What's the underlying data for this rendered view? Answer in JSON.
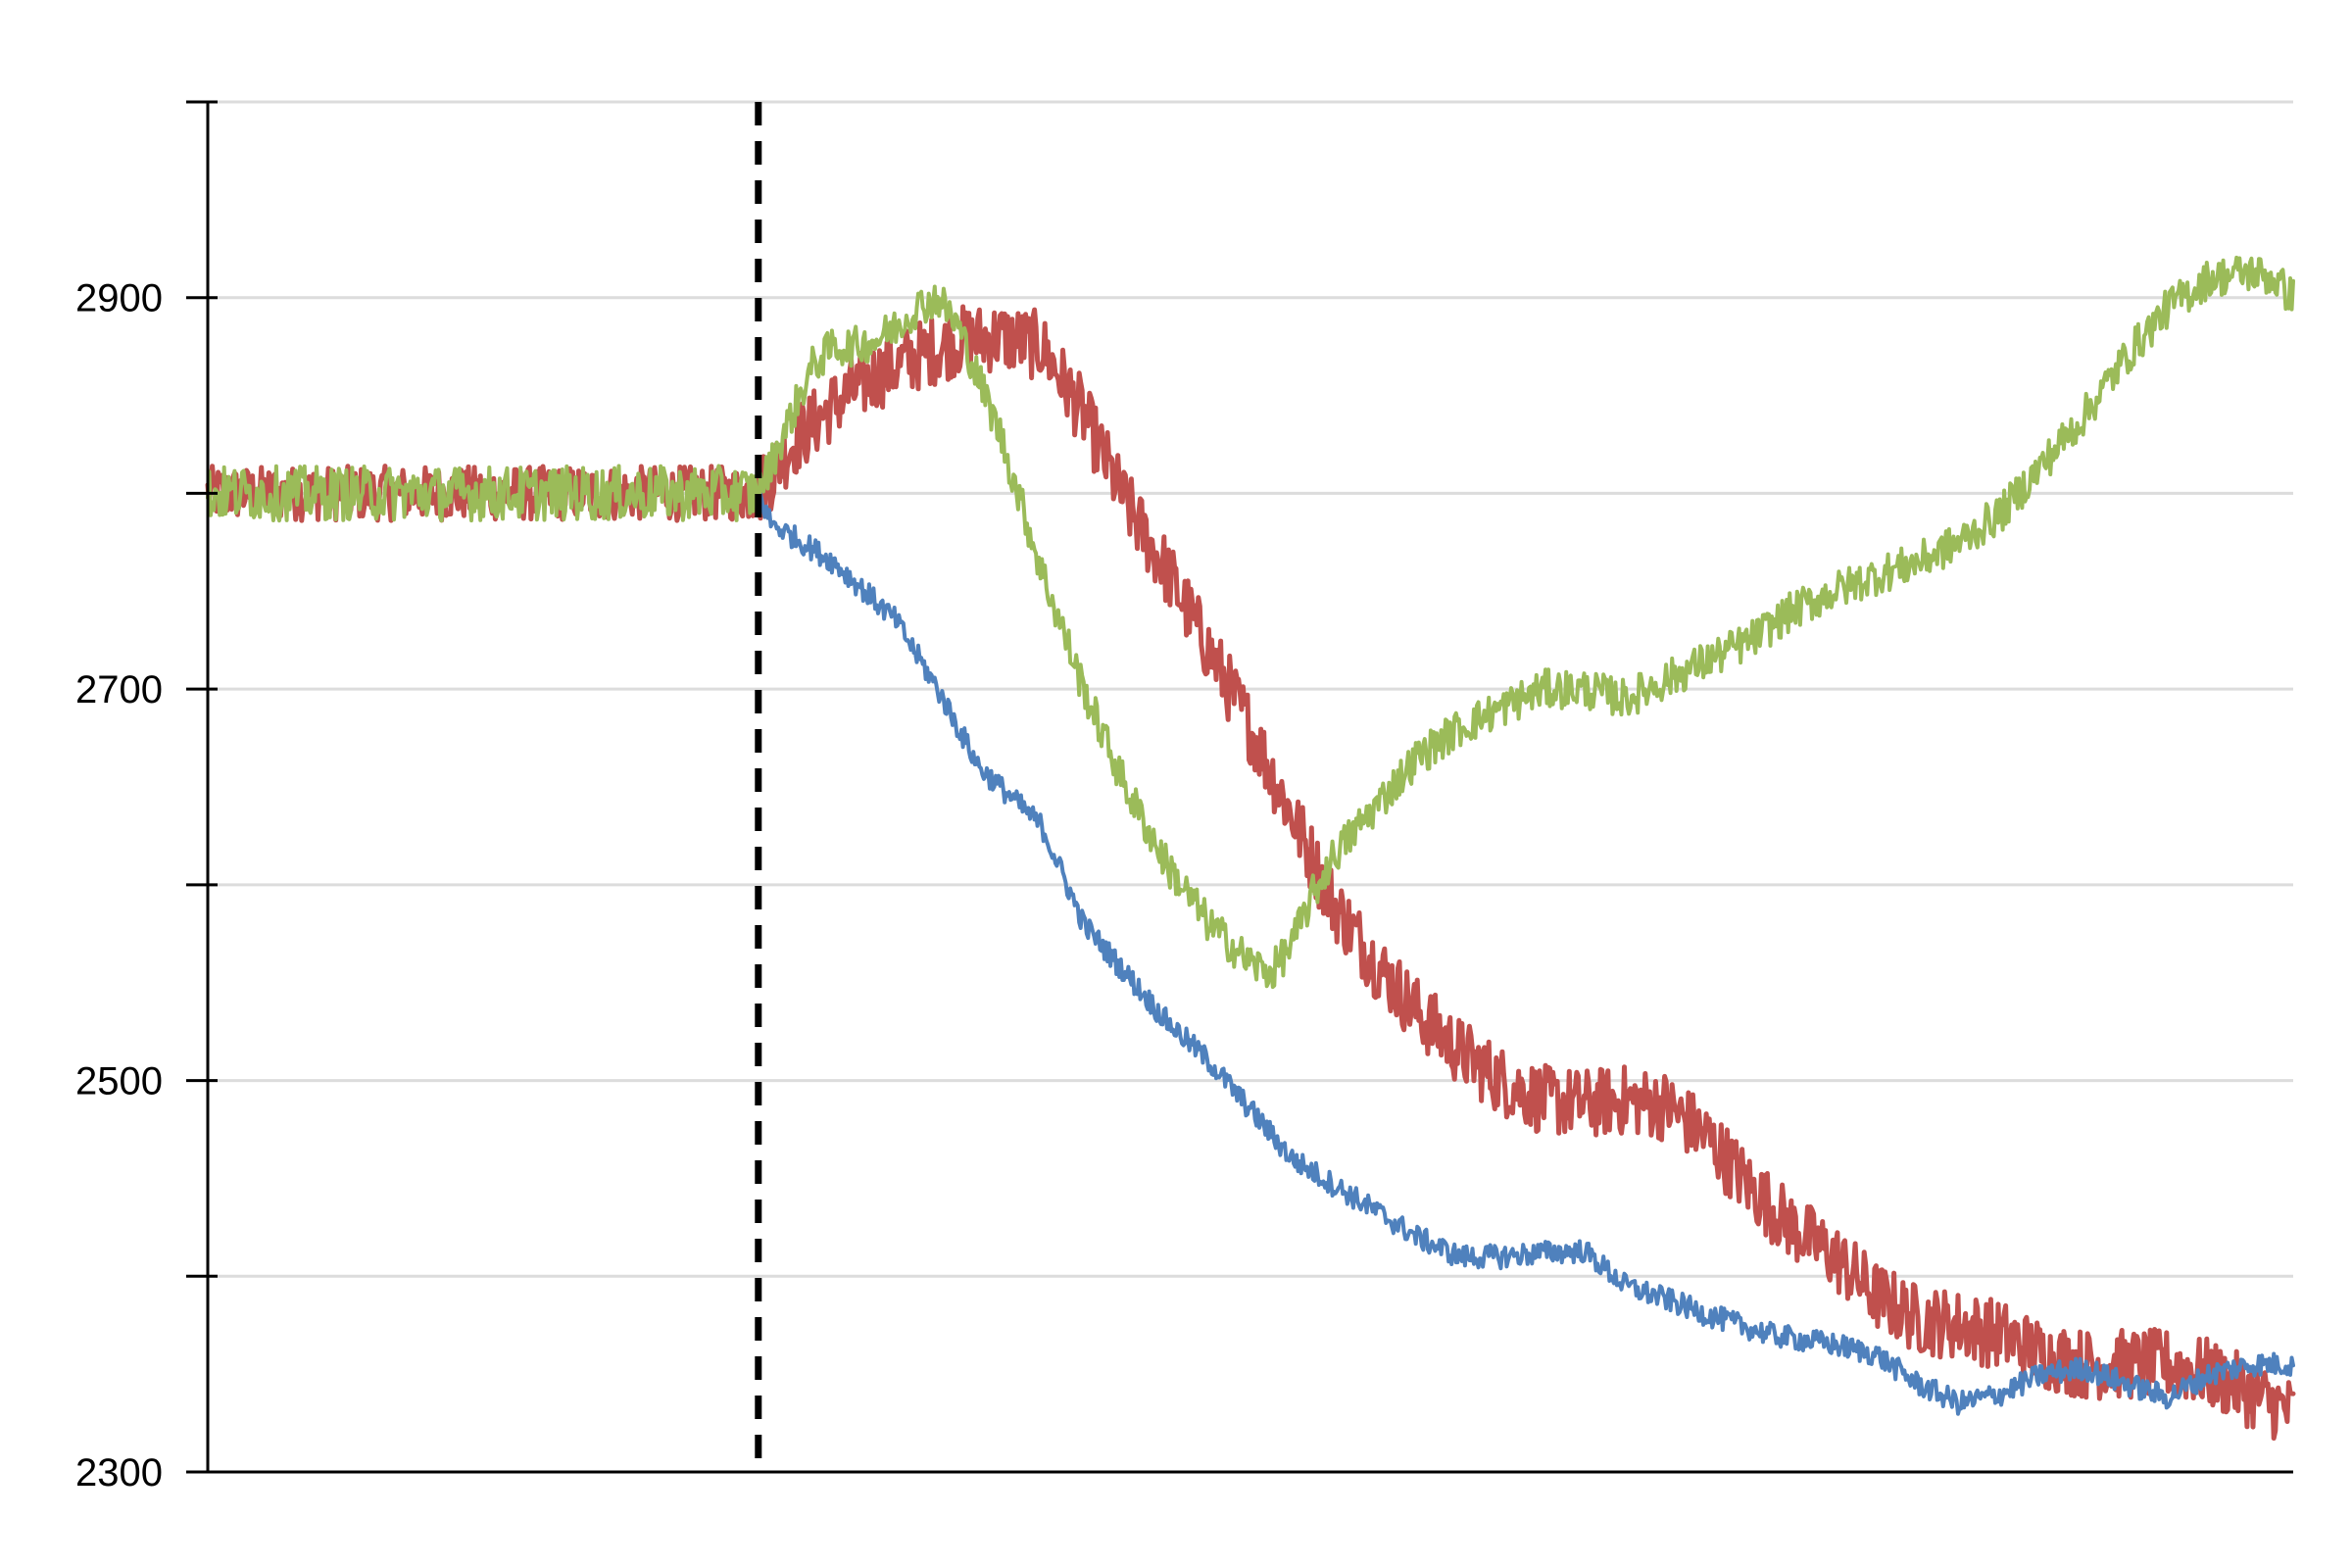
{
  "chart_data": {
    "type": "line",
    "title": "",
    "xlabel": "",
    "ylabel": "",
    "xlim": [
      0,
      100
    ],
    "ylim": [
      2300,
      3000
    ],
    "y_ticks": [
      2300,
      2400,
      2500,
      2600,
      2700,
      2800,
      2900,
      3000
    ],
    "y_tick_labels": [
      "2300",
      "",
      "2500",
      "",
      "2700",
      "",
      "2900",
      ""
    ],
    "grid": true,
    "legend": "none",
    "vertical_marker": {
      "x": 26.4,
      "style": "dashed",
      "color": "#000000"
    },
    "series": [
      {
        "color": "#4f81bd",
        "noise": 6,
        "x": [
          0,
          26.4,
          27,
          30,
          33,
          35,
          37,
          38,
          40,
          42,
          44,
          46,
          48,
          50,
          52,
          55,
          58,
          60,
          62,
          64,
          66,
          68,
          70,
          72,
          75,
          78,
          80,
          82,
          84,
          86,
          88,
          90,
          92,
          94,
          96,
          98,
          100
        ],
        "y": [
          2800,
          2800,
          2785,
          2765,
          2735,
          2700,
          2660,
          2650,
          2630,
          2580,
          2555,
          2530,
          2510,
          2485,
          2460,
          2440,
          2420,
          2410,
          2410,
          2412,
          2413,
          2395,
          2388,
          2380,
          2370,
          2365,
          2360,
          2345,
          2335,
          2340,
          2350,
          2353,
          2345,
          2338,
          2350,
          2355,
          2355
        ]
      },
      {
        "color": "#c0504d",
        "noise": 18,
        "x": [
          0,
          26.4,
          28,
          30,
          32,
          34,
          36,
          38,
          40,
          42,
          44,
          46,
          48,
          50,
          52,
          54,
          56,
          58,
          60,
          62,
          64,
          66,
          68,
          70,
          72,
          74,
          76,
          78,
          80,
          82,
          84,
          86,
          88,
          90,
          92,
          94,
          96,
          98,
          100
        ],
        "y": [
          2800,
          2800,
          2825,
          2845,
          2860,
          2870,
          2878,
          2880,
          2875,
          2840,
          2795,
          2760,
          2720,
          2680,
          2635,
          2590,
          2560,
          2535,
          2515,
          2500,
          2490,
          2488,
          2490,
          2487,
          2470,
          2445,
          2425,
          2410,
          2390,
          2378,
          2375,
          2370,
          2360,
          2355,
          2355,
          2355,
          2350,
          2340,
          2330
        ]
      },
      {
        "color": "#9bbb59",
        "noise": 10,
        "x": [
          0,
          26.4,
          27,
          28,
          29,
          30,
          31,
          32,
          33,
          34,
          35,
          36,
          38,
          40,
          42,
          44,
          46,
          48,
          50,
          51,
          52,
          53,
          54,
          56,
          58,
          60,
          62,
          64,
          66,
          68,
          70,
          72,
          74,
          76,
          78,
          80,
          82,
          84,
          86,
          88,
          90,
          92,
          94,
          96,
          98,
          99,
          100
        ],
        "y": [
          2800,
          2800,
          2815,
          2840,
          2865,
          2875,
          2875,
          2878,
          2885,
          2895,
          2900,
          2885,
          2830,
          2760,
          2700,
          2650,
          2610,
          2580,
          2560,
          2555,
          2570,
          2595,
          2615,
          2640,
          2665,
          2680,
          2690,
          2700,
          2700,
          2695,
          2705,
          2715,
          2725,
          2740,
          2750,
          2758,
          2765,
          2775,
          2790,
          2815,
          2840,
          2870,
          2895,
          2910,
          2913,
          2910,
          2900
        ]
      }
    ]
  }
}
